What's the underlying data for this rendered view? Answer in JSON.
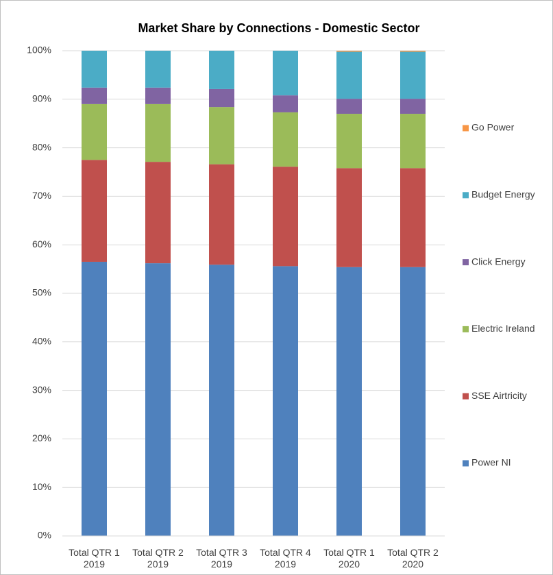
{
  "chart_data": {
    "type": "stacked_bar",
    "title": "Market Share by Connections - Domestic Sector",
    "categories": [
      "Total QTR 1 2019",
      "Total QTR 2 2019",
      "Total QTR 3 2019",
      "Total QTR 4 2019",
      "Total QTR 1 2020",
      "Total QTR 2 2020"
    ],
    "series": [
      {
        "name": "Power NI",
        "color": "#4f81bd",
        "values": [
          56.5,
          56.2,
          55.9,
          55.6,
          55.4,
          55.4
        ]
      },
      {
        "name": "SSE Airtricity",
        "color": "#c0504d",
        "values": [
          21.0,
          20.9,
          20.7,
          20.5,
          20.4,
          20.4
        ]
      },
      {
        "name": "Electric Ireland",
        "color": "#9bbb59",
        "values": [
          11.5,
          11.9,
          11.8,
          11.2,
          11.2,
          11.2
        ]
      },
      {
        "name": "Click Energy",
        "color": "#8064a2",
        "values": [
          3.4,
          3.4,
          3.7,
          3.5,
          3.1,
          3.1
        ]
      },
      {
        "name": "Budget Energy",
        "color": "#4bacc6",
        "values": [
          7.6,
          7.6,
          7.9,
          9.2,
          9.7,
          9.7
        ]
      },
      {
        "name": "Go Power",
        "color": "#f79646",
        "values": [
          0,
          0,
          0,
          0,
          0.2,
          0.2
        ]
      }
    ],
    "ylim": [
      0,
      100
    ],
    "yticks": [
      {
        "value": 0,
        "label": "0%"
      },
      {
        "value": 10,
        "label": "10%"
      },
      {
        "value": 20,
        "label": "20%"
      },
      {
        "value": 30,
        "label": "30%"
      },
      {
        "value": 40,
        "label": "40%"
      },
      {
        "value": 50,
        "label": "50%"
      },
      {
        "value": 60,
        "label": "60%"
      },
      {
        "value": 70,
        "label": "70%"
      },
      {
        "value": 80,
        "label": "80%"
      },
      {
        "value": 90,
        "label": "90%"
      },
      {
        "value": 100,
        "label": "100%"
      }
    ],
    "grid": true,
    "legend": "right"
  }
}
